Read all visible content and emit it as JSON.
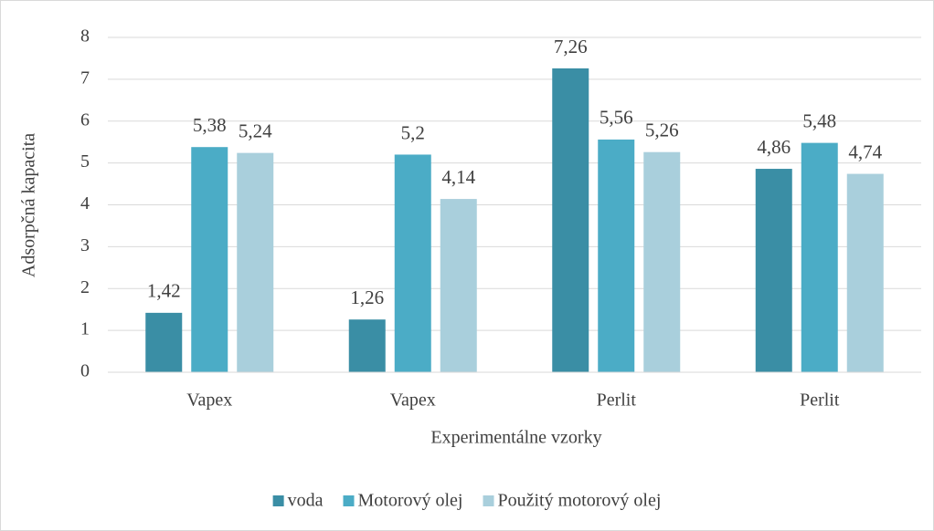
{
  "chart_data": {
    "type": "bar",
    "categories": [
      "Vapex",
      "Vapex",
      "Perlit",
      "Perlit"
    ],
    "series": [
      {
        "name": "voda",
        "color": "#3a8ea5",
        "values": [
          1.42,
          1.26,
          7.26,
          4.86
        ],
        "value_labels": [
          "1,42",
          "1,26",
          "7,26",
          "4,86"
        ]
      },
      {
        "name": "Motorový olej",
        "color": "#4bacc6",
        "values": [
          5.38,
          5.2,
          5.56,
          5.48
        ],
        "value_labels": [
          "5,38",
          "5,2",
          "5,56",
          "5,48"
        ]
      },
      {
        "name": "Použitý motorový olej",
        "color": "#a9cfdc",
        "values": [
          5.24,
          4.14,
          5.26,
          4.74
        ],
        "value_labels": [
          "5,24",
          "4,14",
          "5,26",
          "4,74"
        ]
      }
    ],
    "ylabel": "Adsorpčná kapacita",
    "xlabel": "Experimentálne vzorky",
    "ylim": [
      0,
      8
    ],
    "yticks": [
      0,
      1,
      2,
      3,
      4,
      5,
      6,
      7,
      8
    ],
    "grid": true,
    "legend": "bottom"
  }
}
